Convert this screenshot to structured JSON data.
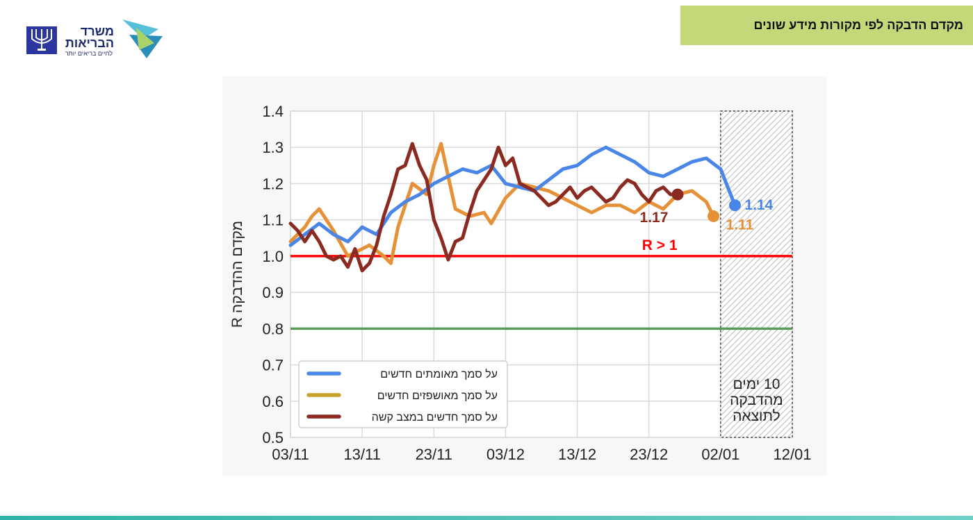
{
  "header": {
    "title": "מקדם הדבקה לפי מקורות מידע שונים"
  },
  "logo": {
    "name_line1": "משרד",
    "name_line2": "הבריאות",
    "tagline": "לחיים בריאים יותר"
  },
  "colors": {
    "confirmed": "#4a86e8",
    "hospitalized": "#e69138",
    "severe": "#8b2a20",
    "reference_red": "#ff0000",
    "reference_green": "#5a9a56",
    "banner": "#c2d879"
  },
  "chart_data": {
    "type": "line",
    "ylabel": "R מקדם ההדבקה",
    "xlabel": "",
    "ylim": [
      0.5,
      1.4
    ],
    "yticks": [
      "0.5",
      "0.6",
      "0.7",
      "0.8",
      "0.9",
      "1.0",
      "1.1",
      "1.2",
      "1.3",
      "1.4"
    ],
    "xticks": [
      "03/11",
      "13/11",
      "23/11",
      "03/12",
      "13/12",
      "23/12",
      "02/01",
      "12/01"
    ],
    "x_domain": [
      0,
      70
    ],
    "grid": true,
    "legend_position": "bottom-left",
    "reference_lines": [
      {
        "value": 1.0,
        "label": "R > 1",
        "color": "#ff0000"
      },
      {
        "value": 0.8,
        "label": "",
        "color": "#5a9a56"
      }
    ],
    "shaded_region": {
      "from": "02/01",
      "to": "12/01",
      "label_lines": [
        "10 ימים",
        "מהדבקה",
        "לתוצאה"
      ]
    },
    "series": [
      {
        "name": "על סמך מאומתים חדשים",
        "color": "#4a86e8",
        "end_label": "1.14",
        "x": [
          0,
          2,
          4,
          6,
          8,
          10,
          12,
          14,
          16,
          18,
          20,
          22,
          24,
          26,
          28,
          30,
          32,
          34,
          36,
          38,
          40,
          42,
          44,
          46,
          48,
          50,
          52,
          54,
          56,
          58,
          60,
          61,
          62
        ],
        "y": [
          1.03,
          1.06,
          1.09,
          1.06,
          1.04,
          1.08,
          1.06,
          1.12,
          1.15,
          1.17,
          1.2,
          1.22,
          1.24,
          1.23,
          1.25,
          1.2,
          1.19,
          1.18,
          1.21,
          1.24,
          1.25,
          1.28,
          1.3,
          1.28,
          1.26,
          1.23,
          1.22,
          1.24,
          1.26,
          1.27,
          1.24,
          1.19,
          1.14
        ]
      },
      {
        "name": "על סמך מאושפזים חדשים",
        "color": "#e69138",
        "end_label": "1.11",
        "x": [
          0,
          2,
          3,
          4,
          6,
          8,
          9,
          11,
          13,
          14,
          15,
          17,
          19,
          20,
          21,
          23,
          25,
          27,
          28,
          30,
          32,
          34,
          36,
          38,
          40,
          42,
          44,
          46,
          48,
          50,
          52,
          54,
          56,
          58,
          59
        ],
        "y": [
          1.04,
          1.08,
          1.11,
          1.13,
          1.07,
          1.0,
          1.01,
          1.03,
          1.0,
          0.98,
          1.08,
          1.2,
          1.17,
          1.25,
          1.31,
          1.13,
          1.11,
          1.12,
          1.09,
          1.16,
          1.2,
          1.19,
          1.18,
          1.16,
          1.14,
          1.12,
          1.14,
          1.14,
          1.12,
          1.15,
          1.13,
          1.17,
          1.18,
          1.15,
          1.11
        ]
      },
      {
        "name": "על סמך חדשים במצב קשה",
        "color": "#8b2a20",
        "end_label": "1.17",
        "x": [
          0,
          1,
          2,
          3,
          4,
          5,
          6,
          7,
          8,
          9,
          10,
          11,
          12,
          13,
          14,
          15,
          16,
          17,
          18,
          19,
          20,
          21,
          22,
          23,
          24,
          25,
          26,
          27,
          28,
          29,
          30,
          31,
          32,
          33,
          34,
          35,
          36,
          37,
          38,
          39,
          40,
          41,
          42,
          43,
          44,
          45,
          46,
          47,
          48,
          49,
          50,
          51,
          52,
          53,
          54
        ],
        "y": [
          1.09,
          1.07,
          1.04,
          1.07,
          1.04,
          1.0,
          0.99,
          1.0,
          0.97,
          1.02,
          0.96,
          0.98,
          1.03,
          1.11,
          1.17,
          1.24,
          1.25,
          1.31,
          1.25,
          1.21,
          1.1,
          1.05,
          0.99,
          1.04,
          1.05,
          1.12,
          1.18,
          1.21,
          1.24,
          1.3,
          1.25,
          1.27,
          1.2,
          1.19,
          1.18,
          1.16,
          1.14,
          1.15,
          1.17,
          1.19,
          1.16,
          1.18,
          1.19,
          1.17,
          1.15,
          1.16,
          1.19,
          1.21,
          1.2,
          1.17,
          1.15,
          1.18,
          1.19,
          1.17,
          1.17
        ]
      }
    ]
  }
}
